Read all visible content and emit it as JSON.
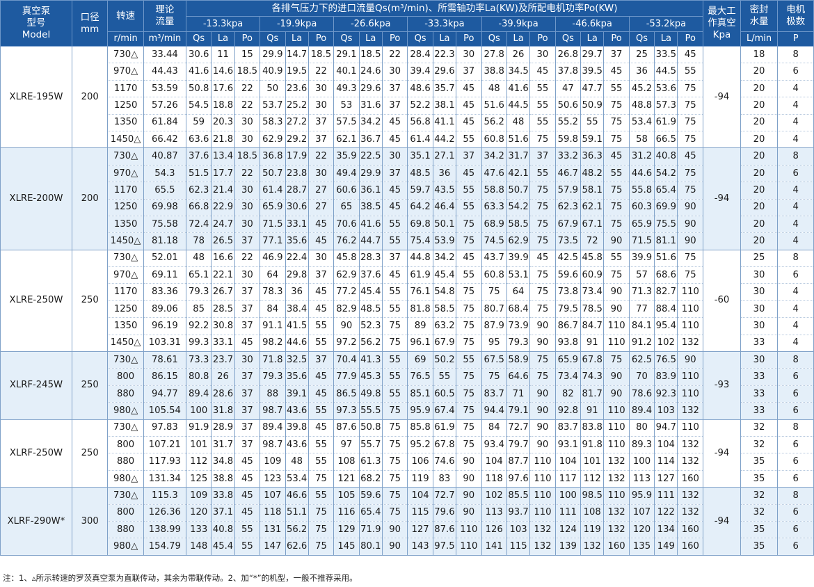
{
  "header": {
    "model_col": [
      "真空泵",
      "型号",
      "Model"
    ],
    "bore_col": [
      "口径",
      "mm"
    ],
    "speed_col": "转速",
    "theory_col": [
      "理论",
      "流量"
    ],
    "main_title": "各排气压力下的进口流量Qs(m³/min)、所需轴功率La(KW)及所配电机功率Po(KW)",
    "pressures": [
      "-13.3kpa",
      "-19.9kpa",
      "-26.6kpa",
      "-33.3kpa",
      "-39.9kpa",
      "-46.6kpa",
      "-53.2kpa"
    ],
    "sub_labels": [
      "Qs",
      "La",
      "Po"
    ],
    "vacuum_col": [
      "最大工",
      "作真空",
      "Kpa"
    ],
    "water_col": [
      "密封",
      "水量",
      "L/min"
    ],
    "poles_col": [
      "电机",
      "极数",
      "P"
    ],
    "speed_unit": "r/min",
    "theory_unit": "m³/min"
  },
  "groups": [
    {
      "model": "XLRE-195W",
      "bore": "200",
      "max_vacuum": "-94",
      "rows": [
        {
          "speed": "730△",
          "theory": "33.44",
          "vals": [
            "30.6",
            "11",
            "15",
            "29.9",
            "14.7",
            "18.5",
            "29.1",
            "18.5",
            "22",
            "28.4",
            "22.3",
            "30",
            "27.8",
            "26",
            "30",
            "26.8",
            "29.7",
            "37",
            "25",
            "33.5",
            "45"
          ],
          "water": "18",
          "poles": "8"
        },
        {
          "speed": "970△",
          "theory": "44.43",
          "vals": [
            "41.6",
            "14.6",
            "18.5",
            "40.9",
            "19.5",
            "22",
            "40.1",
            "24.6",
            "30",
            "39.4",
            "29.6",
            "37",
            "38.8",
            "34.5",
            "45",
            "37.8",
            "39.5",
            "45",
            "36",
            "44.5",
            "55"
          ],
          "water": "20",
          "poles": "6"
        },
        {
          "speed": "1170",
          "theory": "53.59",
          "vals": [
            "50.8",
            "17.6",
            "22",
            "50",
            "23.6",
            "30",
            "49.3",
            "29.6",
            "37",
            "48.6",
            "35.7",
            "45",
            "48",
            "41.6",
            "55",
            "47",
            "47.7",
            "55",
            "45.2",
            "53.6",
            "75"
          ],
          "water": "20",
          "poles": "4"
        },
        {
          "speed": "1250",
          "theory": "57.26",
          "vals": [
            "54.5",
            "18.8",
            "22",
            "53.7",
            "25.2",
            "30",
            "53",
            "31.6",
            "37",
            "52.2",
            "38.1",
            "45",
            "51.6",
            "44.5",
            "55",
            "50.6",
            "50.9",
            "75",
            "48.8",
            "57.3",
            "75"
          ],
          "water": "20",
          "poles": "4"
        },
        {
          "speed": "1350",
          "theory": "61.84",
          "vals": [
            "59",
            "20.3",
            "30",
            "58.3",
            "27.2",
            "37",
            "57.5",
            "34.2",
            "45",
            "56.8",
            "41.1",
            "45",
            "56.2",
            "48",
            "55",
            "55.2",
            "55",
            "75",
            "53.4",
            "61.9",
            "75"
          ],
          "water": "20",
          "poles": "4"
        },
        {
          "speed": "1450△",
          "theory": "66.42",
          "vals": [
            "63.6",
            "21.8",
            "30",
            "62.9",
            "29.2",
            "37",
            "62.1",
            "36.7",
            "45",
            "61.4",
            "44.2",
            "55",
            "60.8",
            "51.6",
            "75",
            "59.8",
            "59.1",
            "75",
            "58",
            "66.5",
            "75"
          ],
          "water": "20",
          "poles": "4"
        }
      ]
    },
    {
      "model": "XLRE-200W",
      "bore": "200",
      "max_vacuum": "-94",
      "rows": [
        {
          "speed": "730△",
          "theory": "40.87",
          "vals": [
            "37.6",
            "13.4",
            "18.5",
            "36.8",
            "17.9",
            "22",
            "35.9",
            "22.5",
            "30",
            "35.1",
            "27.1",
            "37",
            "34.2",
            "31.7",
            "37",
            "33.2",
            "36.3",
            "45",
            "31.2",
            "40.8",
            "45"
          ],
          "water": "20",
          "poles": "8"
        },
        {
          "speed": "970△",
          "theory": "54.3",
          "vals": [
            "51.5",
            "17.7",
            "22",
            "50.7",
            "23.8",
            "30",
            "49.4",
            "29.9",
            "37",
            "48.5",
            "36",
            "45",
            "47.6",
            "42.1",
            "55",
            "46.7",
            "48.2",
            "55",
            "44.6",
            "54.2",
            "75"
          ],
          "water": "20",
          "poles": "6"
        },
        {
          "speed": "1170",
          "theory": "65.5",
          "vals": [
            "62.3",
            "21.4",
            "30",
            "61.4",
            "28.7",
            "27",
            "60.6",
            "36.1",
            "45",
            "59.7",
            "43.5",
            "55",
            "58.8",
            "50.7",
            "75",
            "57.9",
            "58.1",
            "75",
            "55.8",
            "65.4",
            "75"
          ],
          "water": "20",
          "poles": "4"
        },
        {
          "speed": "1250",
          "theory": "69.98",
          "vals": [
            "66.8",
            "22.9",
            "30",
            "65.9",
            "30.6",
            "27",
            "65",
            "38.5",
            "45",
            "64.2",
            "46.4",
            "55",
            "63.3",
            "54.2",
            "75",
            "62.3",
            "62.1",
            "75",
            "60.3",
            "69.9",
            "90"
          ],
          "water": "20",
          "poles": "4"
        },
        {
          "speed": "1350",
          "theory": "75.58",
          "vals": [
            "72.4",
            "24.7",
            "30",
            "71.5",
            "33.1",
            "45",
            "70.6",
            "41.6",
            "55",
            "69.8",
            "50.1",
            "75",
            "68.9",
            "58.5",
            "75",
            "67.9",
            "67.1",
            "75",
            "65.9",
            "75.5",
            "90"
          ],
          "water": "20",
          "poles": "4"
        },
        {
          "speed": "1450△",
          "theory": "81.18",
          "vals": [
            "78",
            "26.5",
            "37",
            "77.1",
            "35.6",
            "45",
            "76.2",
            "44.7",
            "55",
            "75.4",
            "53.9",
            "75",
            "74.5",
            "62.9",
            "75",
            "73.5",
            "72",
            "90",
            "71.5",
            "81.1",
            "90"
          ],
          "water": "20",
          "poles": "4"
        }
      ]
    },
    {
      "model": "XLRE-250W",
      "bore": "250",
      "max_vacuum": "-60",
      "rows": [
        {
          "speed": "730△",
          "theory": "52.01",
          "vals": [
            "48",
            "16.6",
            "22",
            "46.9",
            "22.4",
            "30",
            "45.8",
            "28.3",
            "37",
            "44.8",
            "34.2",
            "45",
            "43.7",
            "39.9",
            "45",
            "42.5",
            "45.8",
            "55",
            "39.9",
            "51.6",
            "75"
          ],
          "water": "25",
          "poles": "8"
        },
        {
          "speed": "970△",
          "theory": "69.11",
          "vals": [
            "65.1",
            "22.1",
            "30",
            "64",
            "29.8",
            "37",
            "62.9",
            "37.6",
            "45",
            "61.9",
            "45.4",
            "55",
            "60.8",
            "53.1",
            "75",
            "59.6",
            "60.9",
            "75",
            "57",
            "68.6",
            "75"
          ],
          "water": "30",
          "poles": "6"
        },
        {
          "speed": "1170",
          "theory": "83.36",
          "vals": [
            "79.3",
            "26.7",
            "37",
            "78.3",
            "36",
            "45",
            "77.2",
            "45.4",
            "55",
            "76.1",
            "54.8",
            "75",
            "75",
            "64",
            "75",
            "73.8",
            "73.4",
            "90",
            "71.3",
            "82.7",
            "110"
          ],
          "water": "30",
          "poles": "4"
        },
        {
          "speed": "1250",
          "theory": "89.06",
          "vals": [
            "85",
            "28.5",
            "37",
            "84",
            "38.4",
            "45",
            "82.9",
            "48.5",
            "55",
            "81.8",
            "58.5",
            "75",
            "80.7",
            "68.4",
            "75",
            "79.5",
            "78.5",
            "90",
            "77",
            "88.4",
            "110"
          ],
          "water": "30",
          "poles": "4"
        },
        {
          "speed": "1350",
          "theory": "96.19",
          "vals": [
            "92.2",
            "30.8",
            "37",
            "91.1",
            "41.5",
            "55",
            "90",
            "52.3",
            "75",
            "89",
            "63.2",
            "75",
            "87.9",
            "73.9",
            "90",
            "86.7",
            "84.7",
            "110",
            "84.1",
            "95.4",
            "110"
          ],
          "water": "30",
          "poles": "4"
        },
        {
          "speed": "1450△",
          "theory": "103.31",
          "vals": [
            "99.3",
            "33.1",
            "45",
            "98.2",
            "44.6",
            "55",
            "97.2",
            "56.2",
            "75",
            "96.1",
            "67.9",
            "75",
            "95",
            "79.3",
            "90",
            "93.8",
            "91",
            "110",
            "91.2",
            "102",
            "132"
          ],
          "water": "33",
          "poles": "4"
        }
      ]
    },
    {
      "model": "XLRF-245W",
      "bore": "250",
      "max_vacuum": "-93",
      "rows": [
        {
          "speed": "730△",
          "theory": "78.61",
          "vals": [
            "73.3",
            "23.7",
            "30",
            "71.8",
            "32.5",
            "37",
            "70.4",
            "41.3",
            "55",
            "69",
            "50.2",
            "55",
            "67.5",
            "58.9",
            "75",
            "65.9",
            "67.8",
            "75",
            "62.5",
            "76.5",
            "90"
          ],
          "water": "30",
          "poles": "8"
        },
        {
          "speed": "800",
          "theory": "86.15",
          "vals": [
            "80.8",
            "26",
            "37",
            "79.3",
            "35.6",
            "45",
            "77.9",
            "45.3",
            "55",
            "76.5",
            "55",
            "75",
            "75",
            "64.6",
            "75",
            "73.4",
            "74.3",
            "90",
            "70",
            "83.9",
            "110"
          ],
          "water": "33",
          "poles": "6"
        },
        {
          "speed": "880",
          "theory": "94.77",
          "vals": [
            "89.4",
            "28.6",
            "37",
            "88",
            "39.1",
            "45",
            "86.5",
            "49.8",
            "55",
            "85.1",
            "60.5",
            "75",
            "83.7",
            "71",
            "90",
            "82",
            "81.7",
            "90",
            "78.6",
            "92.3",
            "110"
          ],
          "water": "33",
          "poles": "6"
        },
        {
          "speed": "980△",
          "theory": "105.54",
          "vals": [
            "100",
            "31.8",
            "37",
            "98.7",
            "43.6",
            "55",
            "97.3",
            "55.5",
            "75",
            "95.9",
            "67.4",
            "75",
            "94.4",
            "79.1",
            "90",
            "92.8",
            "91",
            "110",
            "89.4",
            "103",
            "132"
          ],
          "water": "33",
          "poles": "6"
        }
      ]
    },
    {
      "model": "XLRF-250W",
      "bore": "250",
      "max_vacuum": "-94",
      "rows": [
        {
          "speed": "730△",
          "theory": "97.83",
          "vals": [
            "91.9",
            "28.9",
            "37",
            "89.4",
            "39.8",
            "45",
            "87.6",
            "50.8",
            "75",
            "85.8",
            "61.9",
            "75",
            "84",
            "72.7",
            "90",
            "83.7",
            "83.8",
            "110",
            "80",
            "94.7",
            "110"
          ],
          "water": "32",
          "poles": "8"
        },
        {
          "speed": "800",
          "theory": "107.21",
          "vals": [
            "101",
            "31.7",
            "37",
            "98.7",
            "43.6",
            "55",
            "97",
            "55.7",
            "75",
            "95.2",
            "67.8",
            "75",
            "93.4",
            "79.7",
            "90",
            "93.1",
            "91.8",
            "110",
            "89.3",
            "104",
            "132"
          ],
          "water": "32",
          "poles": "6"
        },
        {
          "speed": "880",
          "theory": "117.93",
          "vals": [
            "112",
            "34.8",
            "45",
            "109",
            "48",
            "55",
            "108",
            "61.3",
            "75",
            "106",
            "74.6",
            "90",
            "104",
            "87.7",
            "110",
            "104",
            "101",
            "132",
            "100",
            "114",
            "132"
          ],
          "water": "35",
          "poles": "6"
        },
        {
          "speed": "980△",
          "theory": "131.34",
          "vals": [
            "125",
            "38.8",
            "45",
            "123",
            "53.4",
            "75",
            "121",
            "68.2",
            "75",
            "119",
            "83",
            "90",
            "118",
            "97.6",
            "110",
            "117",
            "112",
            "132",
            "113",
            "127",
            "160"
          ],
          "water": "35",
          "poles": "6"
        }
      ]
    },
    {
      "model": "XLRF-290W*",
      "bore": "300",
      "max_vacuum": "-94",
      "rows": [
        {
          "speed": "730△",
          "theory": "115.3",
          "vals": [
            "109",
            "33.8",
            "45",
            "107",
            "46.6",
            "55",
            "105",
            "59.6",
            "75",
            "104",
            "72.7",
            "90",
            "102",
            "85.5",
            "110",
            "100",
            "98.5",
            "110",
            "95.9",
            "111",
            "132"
          ],
          "water": "32",
          "poles": "8"
        },
        {
          "speed": "800",
          "theory": "126.36",
          "vals": [
            "120",
            "37.1",
            "45",
            "118",
            "51.1",
            "75",
            "116",
            "65.4",
            "75",
            "115",
            "79.6",
            "90",
            "113",
            "93.7",
            "110",
            "111",
            "108",
            "132",
            "107",
            "122",
            "132"
          ],
          "water": "32",
          "poles": "6"
        },
        {
          "speed": "880",
          "theory": "138.99",
          "vals": [
            "133",
            "40.8",
            "55",
            "131",
            "56.2",
            "75",
            "129",
            "71.9",
            "90",
            "127",
            "87.6",
            "110",
            "126",
            "103",
            "132",
            "124",
            "119",
            "132",
            "120",
            "134",
            "160"
          ],
          "water": "35",
          "poles": "6"
        },
        {
          "speed": "980△",
          "theory": "154.79",
          "vals": [
            "148",
            "45.4",
            "55",
            "147",
            "62.6",
            "75",
            "145",
            "80.1",
            "90",
            "143",
            "97.5",
            "110",
            "141",
            "115",
            "132",
            "139",
            "132",
            "160",
            "135",
            "149",
            "160"
          ],
          "water": "35",
          "poles": "6"
        }
      ]
    }
  ],
  "footnote": "注：1、▵所示转速的罗茨真空泵为直联传动，其余为带联传动。2、加“*”的机型，一般不推荐采用。",
  "colors": {
    "header_bg": "#1e5aa0",
    "stripe": "#e4eff9",
    "border": "#7fa1c8"
  }
}
